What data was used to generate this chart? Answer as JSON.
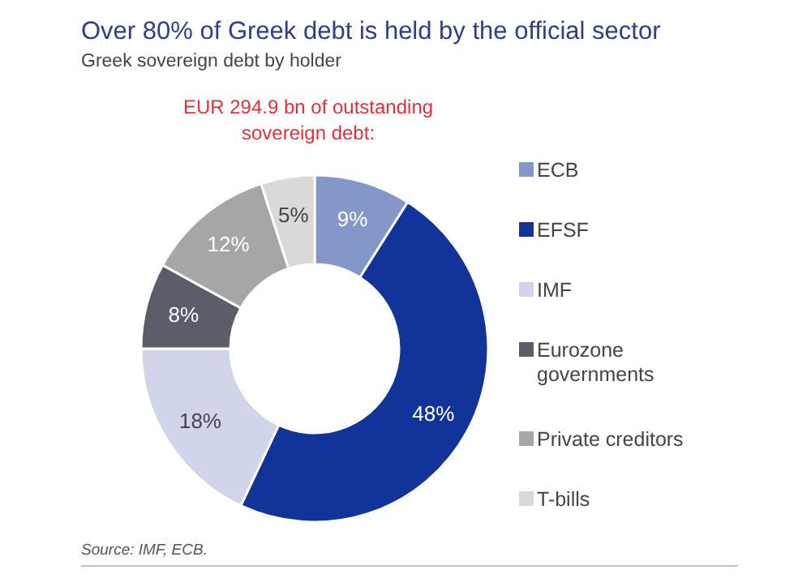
{
  "chart_data": {
    "type": "donut",
    "title": "Over 80% of Greek debt is held by the official sector",
    "subtitle": "Greek sovereign debt by holder",
    "annotations": [
      "EUR 294.9 bn of outstanding sovereign debt:",
      "Source: IMF, ECB."
    ],
    "categories": [
      "ECB",
      "EFSF",
      "IMF",
      "Eurozone governments",
      "Private creditors",
      "T-bills"
    ],
    "values": [
      9,
      48,
      18,
      8,
      12,
      5
    ],
    "value_labels": [
      "9%",
      "48%",
      "18%",
      "8%",
      "12%",
      "5%"
    ],
    "colors": [
      "#8397c9",
      "#12339a",
      "#d0d5e9",
      "#5b5e68",
      "#a6a6a6",
      "#d9d9d9"
    ],
    "legend": "right"
  }
}
